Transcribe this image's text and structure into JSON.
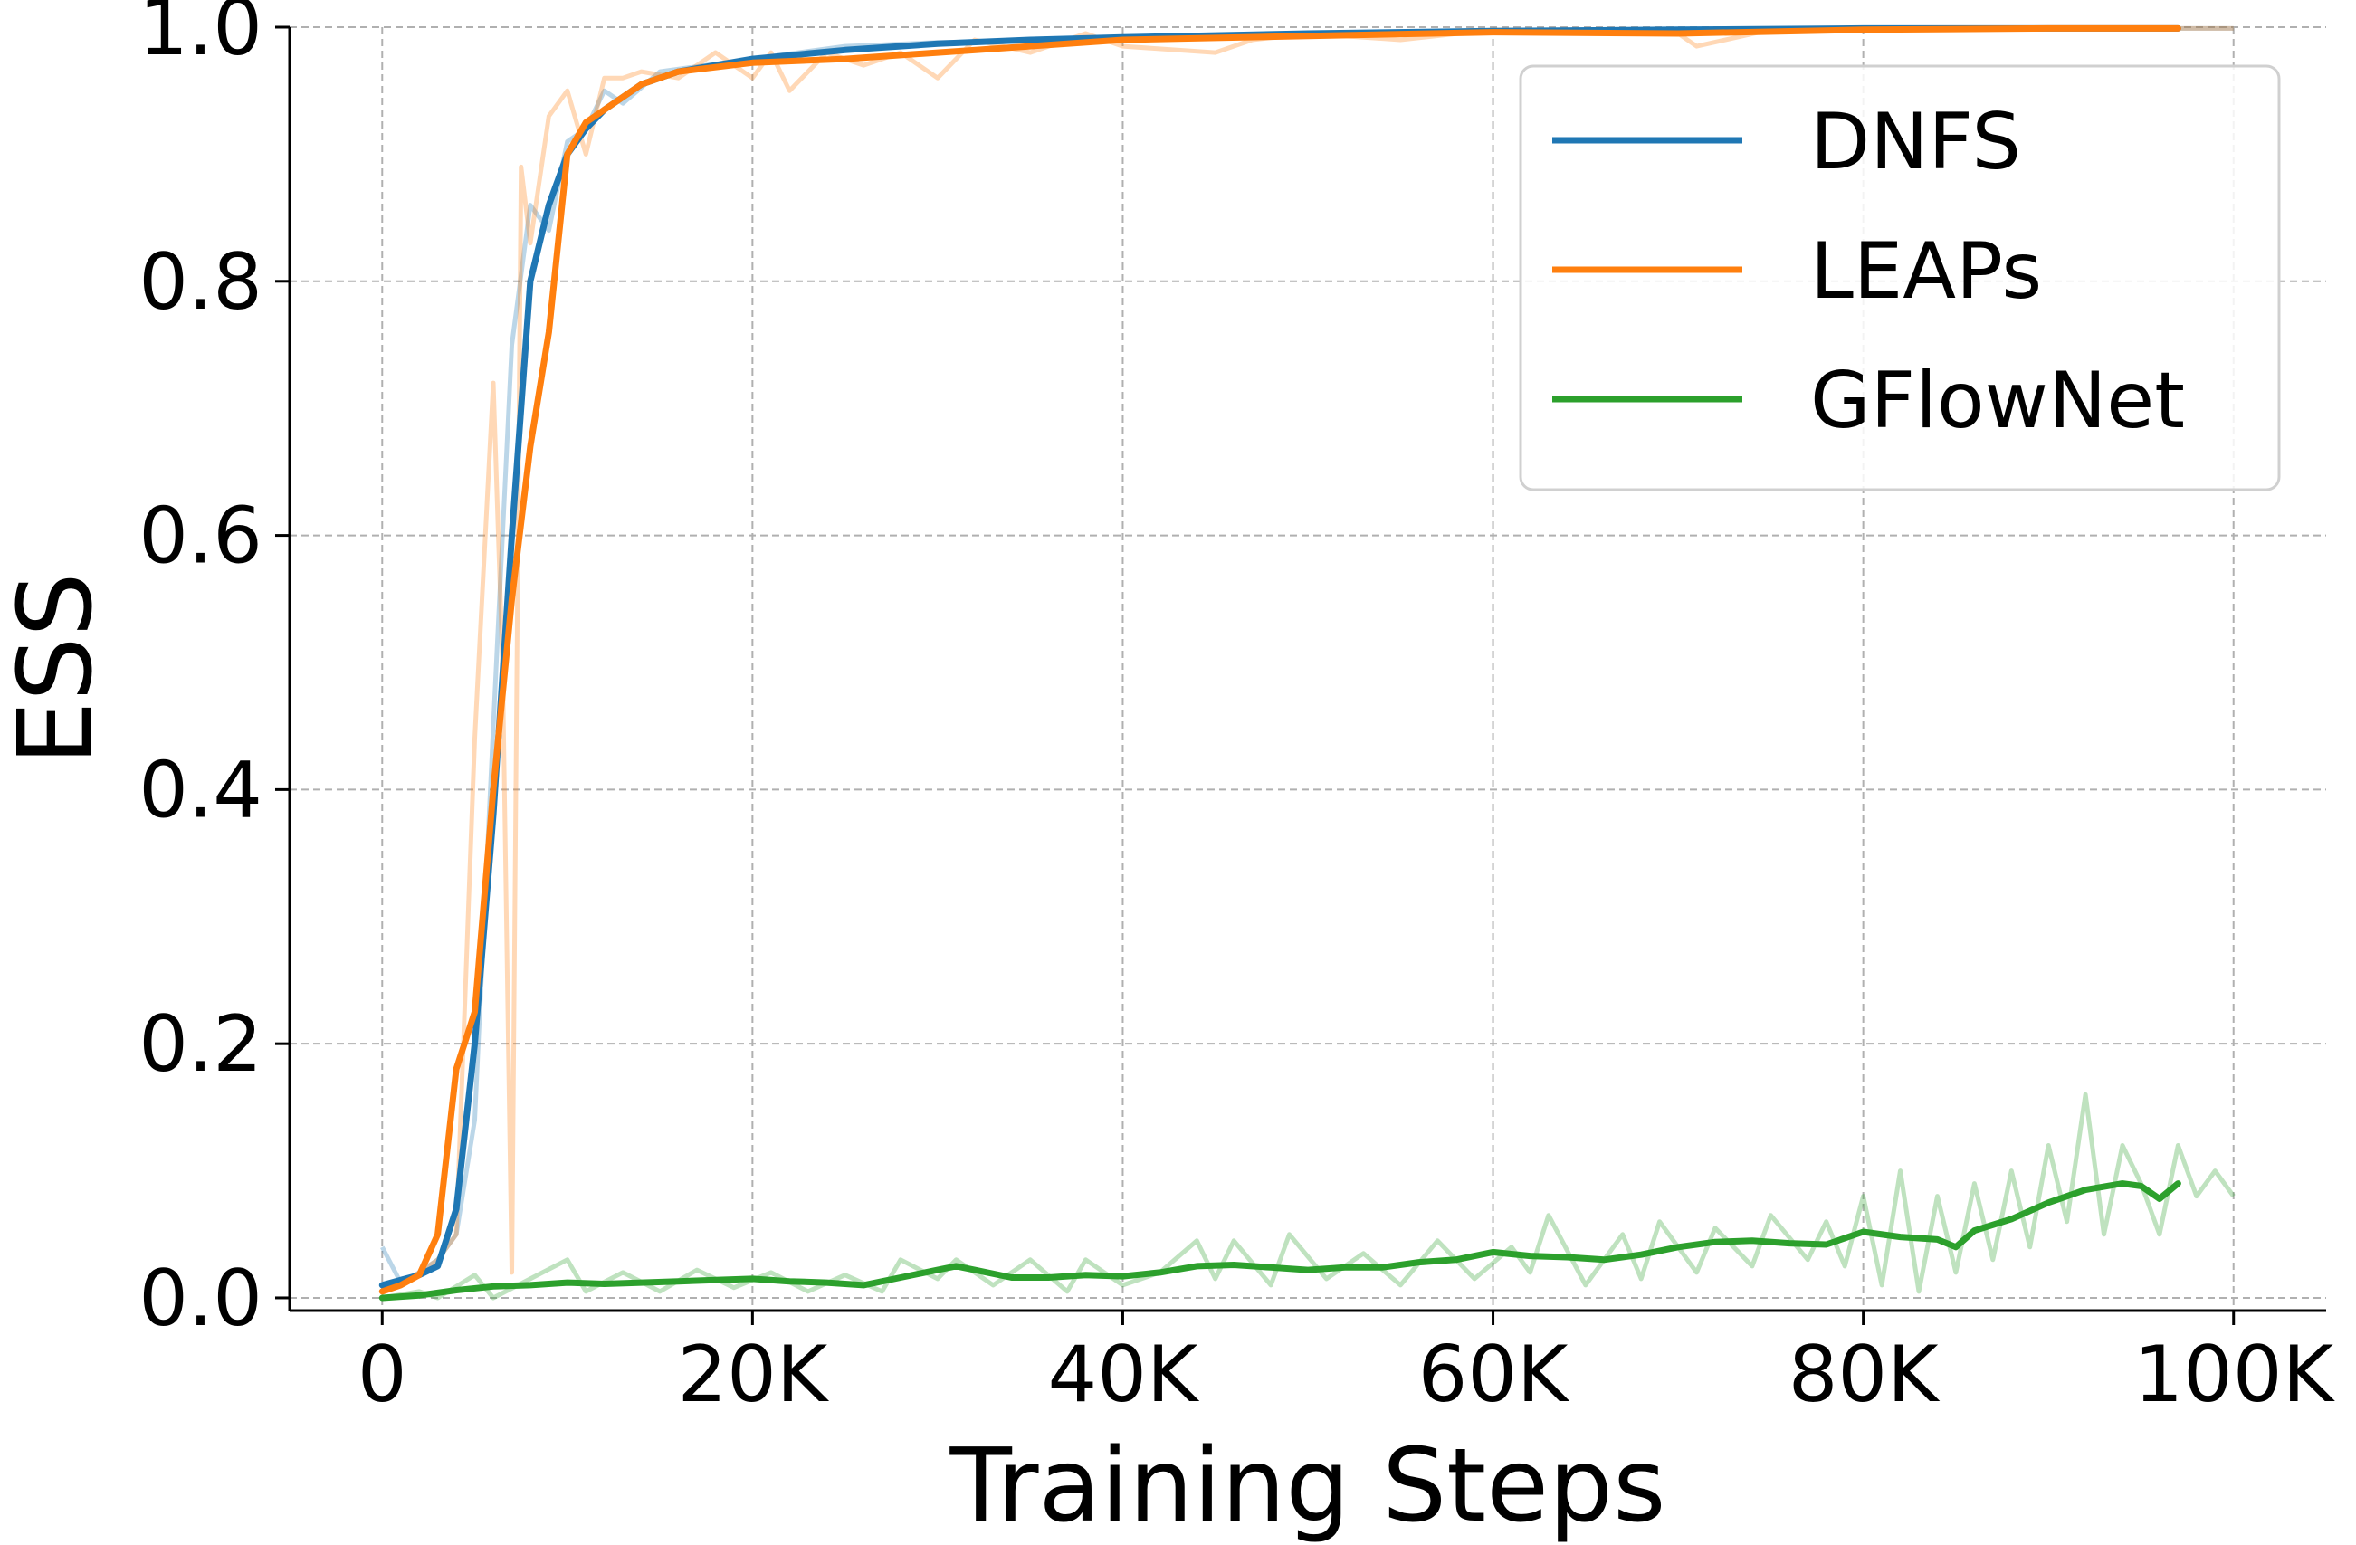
{
  "chart_data": {
    "type": "line",
    "title": "",
    "xlabel": "Training Steps",
    "ylabel": "ESS",
    "xlim": [
      -5000,
      105000
    ],
    "ylim": [
      -0.01,
      1.0
    ],
    "grid": true,
    "legend_position": "top-right",
    "x_ticks": [
      0,
      20000,
      40000,
      60000,
      80000,
      100000
    ],
    "x_tick_labels": [
      "0",
      "20K",
      "40K",
      "60K",
      "80K",
      "100K"
    ],
    "y_ticks": [
      0.0,
      0.2,
      0.4,
      0.6,
      0.8,
      1.0
    ],
    "y_tick_labels": [
      "0.0",
      "0.2",
      "0.4",
      "0.6",
      "0.8",
      "1.0"
    ],
    "series": [
      {
        "name": "DNFS",
        "color": "#1f77b4",
        "smoothed": [
          [
            0,
            0.01
          ],
          [
            1000,
            0.014
          ],
          [
            2000,
            0.018
          ],
          [
            3000,
            0.025
          ],
          [
            4000,
            0.07
          ],
          [
            5000,
            0.2
          ],
          [
            6000,
            0.38
          ],
          [
            7000,
            0.6
          ],
          [
            8000,
            0.8
          ],
          [
            9000,
            0.86
          ],
          [
            10000,
            0.9
          ],
          [
            11000,
            0.92
          ],
          [
            12000,
            0.935
          ],
          [
            14000,
            0.955
          ],
          [
            16000,
            0.965
          ],
          [
            20000,
            0.975
          ],
          [
            25000,
            0.982
          ],
          [
            30000,
            0.987
          ],
          [
            35000,
            0.99
          ],
          [
            40000,
            0.992
          ],
          [
            50000,
            0.995
          ],
          [
            60000,
            0.997
          ],
          [
            70000,
            0.998
          ],
          [
            80000,
            0.999
          ],
          [
            90000,
            0.999
          ],
          [
            97000,
            0.999
          ]
        ],
        "raw": [
          [
            0,
            0.04
          ],
          [
            1000,
            0.012
          ],
          [
            2000,
            0.02
          ],
          [
            3000,
            0.03
          ],
          [
            4000,
            0.05
          ],
          [
            5000,
            0.14
          ],
          [
            6000,
            0.45
          ],
          [
            7000,
            0.75
          ],
          [
            8000,
            0.86
          ],
          [
            9000,
            0.84
          ],
          [
            10000,
            0.91
          ],
          [
            11000,
            0.92
          ],
          [
            12000,
            0.95
          ],
          [
            13000,
            0.94
          ],
          [
            15000,
            0.965
          ],
          [
            20000,
            0.975
          ],
          [
            25000,
            0.985
          ],
          [
            30000,
            0.988
          ],
          [
            40000,
            0.99
          ],
          [
            50000,
            0.995
          ],
          [
            60000,
            0.997
          ],
          [
            80000,
            0.999
          ],
          [
            100000,
            0.999
          ]
        ]
      },
      {
        "name": "LEAPs",
        "color": "#ff7f0e",
        "smoothed": [
          [
            0,
            0.005
          ],
          [
            1000,
            0.01
          ],
          [
            2000,
            0.018
          ],
          [
            3000,
            0.05
          ],
          [
            4000,
            0.18
          ],
          [
            5000,
            0.225
          ],
          [
            6000,
            0.4
          ],
          [
            7000,
            0.55
          ],
          [
            8000,
            0.67
          ],
          [
            9000,
            0.76
          ],
          [
            10000,
            0.9
          ],
          [
            11000,
            0.925
          ],
          [
            12000,
            0.935
          ],
          [
            14000,
            0.955
          ],
          [
            16000,
            0.965
          ],
          [
            20000,
            0.972
          ],
          [
            25000,
            0.975
          ],
          [
            30000,
            0.98
          ],
          [
            35000,
            0.985
          ],
          [
            40000,
            0.99
          ],
          [
            50000,
            0.993
          ],
          [
            60000,
            0.996
          ],
          [
            70000,
            0.995
          ],
          [
            80000,
            0.998
          ],
          [
            90000,
            0.999
          ],
          [
            97000,
            0.999
          ]
        ],
        "raw": [
          [
            0,
            0.005
          ],
          [
            1000,
            0.01
          ],
          [
            2000,
            0.02
          ],
          [
            3000,
            0.03
          ],
          [
            4000,
            0.05
          ],
          [
            5000,
            0.44
          ],
          [
            6000,
            0.72
          ],
          [
            6500,
            0.5
          ],
          [
            7000,
            0.02
          ],
          [
            7500,
            0.89
          ],
          [
            8000,
            0.83
          ],
          [
            9000,
            0.93
          ],
          [
            10000,
            0.95
          ],
          [
            11000,
            0.9
          ],
          [
            12000,
            0.96
          ],
          [
            13000,
            0.96
          ],
          [
            14000,
            0.965
          ],
          [
            16000,
            0.96
          ],
          [
            18000,
            0.98
          ],
          [
            20000,
            0.96
          ],
          [
            21000,
            0.98
          ],
          [
            22000,
            0.95
          ],
          [
            24000,
            0.98
          ],
          [
            26000,
            0.97
          ],
          [
            28000,
            0.98
          ],
          [
            30000,
            0.96
          ],
          [
            32000,
            0.99
          ],
          [
            35000,
            0.98
          ],
          [
            38000,
            0.995
          ],
          [
            40000,
            0.985
          ],
          [
            45000,
            0.98
          ],
          [
            47000,
            0.99
          ],
          [
            50000,
            0.995
          ],
          [
            55000,
            0.99
          ],
          [
            60000,
            0.998
          ],
          [
            70000,
            0.995
          ],
          [
            71000,
            0.985
          ],
          [
            75000,
            0.998
          ],
          [
            80000,
            0.999
          ],
          [
            90000,
            0.999
          ],
          [
            100000,
            0.999
          ]
        ]
      },
      {
        "name": "GFlowNet",
        "color": "#2ca02c",
        "smoothed": [
          [
            0,
            0.0
          ],
          [
            2000,
            0.002
          ],
          [
            4000,
            0.006
          ],
          [
            6000,
            0.009
          ],
          [
            8000,
            0.01
          ],
          [
            10000,
            0.012
          ],
          [
            12000,
            0.011
          ],
          [
            14000,
            0.012
          ],
          [
            16000,
            0.013
          ],
          [
            18000,
            0.014
          ],
          [
            20000,
            0.015
          ],
          [
            22000,
            0.013
          ],
          [
            24000,
            0.012
          ],
          [
            26000,
            0.01
          ],
          [
            28000,
            0.016
          ],
          [
            30000,
            0.022
          ],
          [
            31000,
            0.025
          ],
          [
            32000,
            0.022
          ],
          [
            34000,
            0.016
          ],
          [
            36000,
            0.016
          ],
          [
            38000,
            0.018
          ],
          [
            40000,
            0.017
          ],
          [
            42000,
            0.02
          ],
          [
            44000,
            0.025
          ],
          [
            46000,
            0.026
          ],
          [
            48000,
            0.024
          ],
          [
            50000,
            0.022
          ],
          [
            52000,
            0.024
          ],
          [
            54000,
            0.024
          ],
          [
            56000,
            0.028
          ],
          [
            58000,
            0.03
          ],
          [
            60000,
            0.036
          ],
          [
            62000,
            0.033
          ],
          [
            64000,
            0.032
          ],
          [
            66000,
            0.03
          ],
          [
            68000,
            0.034
          ],
          [
            70000,
            0.04
          ],
          [
            72000,
            0.044
          ],
          [
            74000,
            0.045
          ],
          [
            76000,
            0.043
          ],
          [
            78000,
            0.042
          ],
          [
            80000,
            0.052
          ],
          [
            82000,
            0.048
          ],
          [
            84000,
            0.046
          ],
          [
            85000,
            0.04
          ],
          [
            86000,
            0.053
          ],
          [
            88000,
            0.062
          ],
          [
            90000,
            0.075
          ],
          [
            92000,
            0.085
          ],
          [
            94000,
            0.09
          ],
          [
            95000,
            0.088
          ],
          [
            96000,
            0.078
          ],
          [
            97000,
            0.09
          ]
        ],
        "raw": [
          [
            0,
            0.0
          ],
          [
            2000,
            0.005
          ],
          [
            3000,
            0.0
          ],
          [
            5000,
            0.018
          ],
          [
            6000,
            0.0
          ],
          [
            8000,
            0.015
          ],
          [
            10000,
            0.03
          ],
          [
            11000,
            0.005
          ],
          [
            13000,
            0.02
          ],
          [
            15000,
            0.005
          ],
          [
            17000,
            0.022
          ],
          [
            19000,
            0.008
          ],
          [
            21000,
            0.02
          ],
          [
            23000,
            0.005
          ],
          [
            25000,
            0.018
          ],
          [
            27000,
            0.005
          ],
          [
            28000,
            0.03
          ],
          [
            30000,
            0.015
          ],
          [
            31000,
            0.03
          ],
          [
            33000,
            0.01
          ],
          [
            35000,
            0.03
          ],
          [
            37000,
            0.005
          ],
          [
            38000,
            0.03
          ],
          [
            40000,
            0.01
          ],
          [
            42000,
            0.02
          ],
          [
            44000,
            0.045
          ],
          [
            45000,
            0.015
          ],
          [
            46000,
            0.045
          ],
          [
            48000,
            0.01
          ],
          [
            49000,
            0.05
          ],
          [
            51000,
            0.015
          ],
          [
            53000,
            0.035
          ],
          [
            55000,
            0.01
          ],
          [
            57000,
            0.045
          ],
          [
            59000,
            0.015
          ],
          [
            61000,
            0.04
          ],
          [
            62000,
            0.02
          ],
          [
            63000,
            0.065
          ],
          [
            65000,
            0.01
          ],
          [
            67000,
            0.05
          ],
          [
            68000,
            0.015
          ],
          [
            69000,
            0.06
          ],
          [
            71000,
            0.02
          ],
          [
            72000,
            0.055
          ],
          [
            74000,
            0.025
          ],
          [
            75000,
            0.065
          ],
          [
            77000,
            0.03
          ],
          [
            78000,
            0.06
          ],
          [
            79000,
            0.025
          ],
          [
            80000,
            0.08
          ],
          [
            81000,
            0.01
          ],
          [
            82000,
            0.1
          ],
          [
            83000,
            0.005
          ],
          [
            84000,
            0.08
          ],
          [
            85000,
            0.02
          ],
          [
            86000,
            0.09
          ],
          [
            87000,
            0.03
          ],
          [
            88000,
            0.1
          ],
          [
            89000,
            0.04
          ],
          [
            90000,
            0.12
          ],
          [
            91000,
            0.06
          ],
          [
            92000,
            0.16
          ],
          [
            93000,
            0.05
          ],
          [
            94000,
            0.12
          ],
          [
            95000,
            0.09
          ],
          [
            96000,
            0.05
          ],
          [
            97000,
            0.12
          ],
          [
            98000,
            0.08
          ],
          [
            99000,
            0.1
          ],
          [
            100000,
            0.08
          ]
        ]
      }
    ]
  }
}
